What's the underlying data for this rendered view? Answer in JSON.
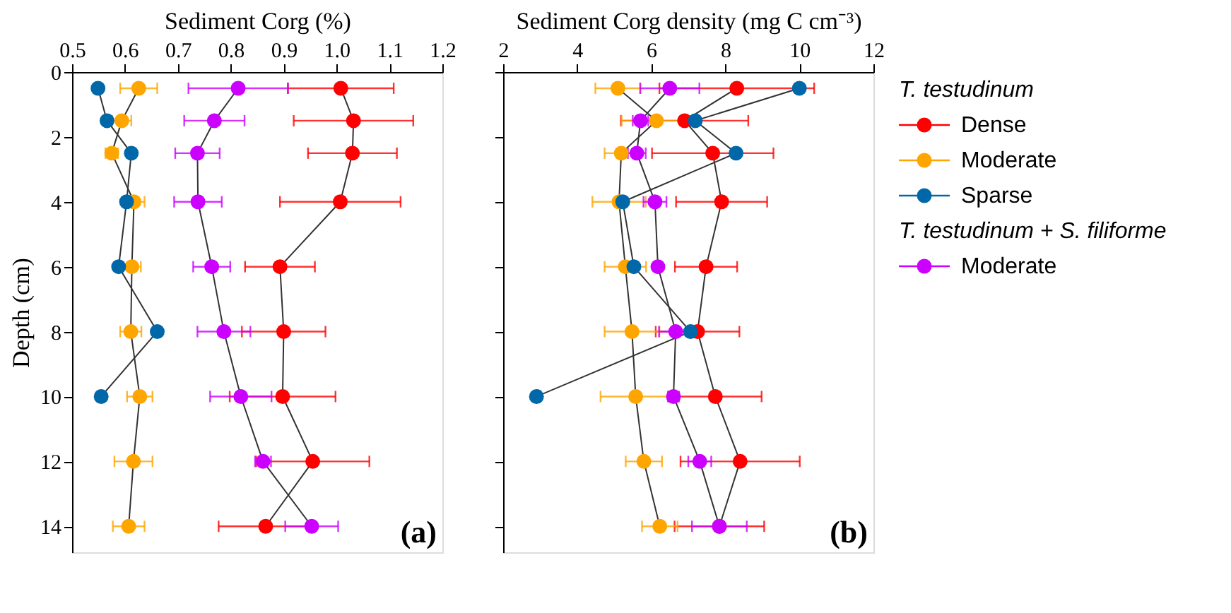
{
  "chart_data": [
    {
      "type": "line",
      "orientation": "horizontal",
      "marker": "circle",
      "xlabel": "Sediment Corg (%)",
      "ylabel": "Depth (cm)",
      "x": [
        0.5,
        1.5,
        2.5,
        4,
        6,
        8,
        10,
        12,
        14
      ],
      "xlim": [
        0.5,
        1.2
      ],
      "xticks": [
        0.5,
        0.6,
        0.7,
        0.8,
        0.9,
        {
          "value": 1,
          "label": "1.0"
        },
        1.1,
        1.2
      ],
      "ylim": [
        14.8,
        0
      ],
      "yticks": [
        0,
        2,
        4,
        6,
        8,
        10,
        12,
        14
      ],
      "grid": false,
      "annotations": [
        "(a)"
      ],
      "series": [
        {
          "color": "#ff0000",
          "values": [
            1.008,
            1.032,
            1.03,
            1.007,
            0.893,
            0.9,
            0.898,
            0.955,
            0.866
          ],
          "errors": [
            0.1,
            0.113,
            0.084,
            0.114,
            0.066,
            0.079,
            0.1,
            0.107,
            0.089
          ]
        },
        {
          "color": "#ffa500",
          "values": [
            0.626,
            0.594,
            0.575,
            0.617,
            0.613,
            0.611,
            0.628,
            0.616,
            0.607
          ],
          "errors": [
            0.035,
            0.018,
            0.012,
            0.02,
            0.017,
            0.02,
            0.024,
            0.036,
            0.03
          ]
        },
        {
          "color": "#0068a8",
          "values": [
            0.549,
            0.566,
            0.612,
            0.603,
            0.588,
            0.661,
            0.555,
            null,
            null
          ]
        },
        {
          "color": "#cc00ff",
          "values": [
            0.814,
            0.769,
            0.737,
            0.738,
            0.764,
            0.787,
            0.819,
            0.861,
            0.953
          ],
          "errors": [
            0.094,
            0.057,
            0.042,
            0.045,
            0.035,
            0.05,
            0.058,
            0.015,
            0.05
          ]
        }
      ]
    },
    {
      "type": "line",
      "orientation": "horizontal",
      "marker": "circle",
      "xlabel": "Sediment Corg density (mg C cm⁻³)",
      "x": [
        0.5,
        1.5,
        2.5,
        4,
        6,
        8,
        10,
        12,
        14
      ],
      "xlim": [
        2,
        12
      ],
      "xticks": [
        2,
        4,
        6,
        8,
        10,
        12
      ],
      "ylim": [
        14.8,
        0
      ],
      "yticks": [
        0,
        2,
        4,
        6,
        8,
        10,
        12,
        14
      ],
      "tick_labels": "x",
      "grid": false,
      "legend": "right",
      "legend_title": [
        "T. testudinum",
        "T. testudinum + S. filiforme"
      ],
      "annotations": [
        "(b)"
      ],
      "series": [
        {
          "name": "Dense",
          "color": "#ff0000",
          "values": [
            8.31,
            6.9,
            7.66,
            7.9,
            7.48,
            7.25,
            7.73,
            8.4,
            7.84
          ],
          "errors": [
            2.09,
            1.72,
            1.64,
            1.23,
            0.84,
            1.13,
            1.25,
            1.61,
            1.21
          ]
        },
        {
          "name": "Moderate",
          "color": "#ffa500",
          "values": [
            5.1,
            6.14,
            5.19,
            5.13,
            5.3,
            5.48,
            5.58,
            5.8,
            6.23
          ],
          "errors": [
            0.61,
            0.94,
            0.45,
            0.72,
            0.56,
            0.74,
            0.95,
            0.49,
            0.48
          ]
        },
        {
          "name": "Sparse",
          "color": "#0068a8",
          "values": [
            10.0,
            7.19,
            8.29,
            5.23,
            5.53,
            7.06,
            2.9,
            null,
            null
          ]
        },
        {
          "name": "Moderate",
          "color": "#cc00ff",
          "values": [
            6.5,
            5.71,
            5.61,
            6.1,
            6.18,
            6.66,
            6.6,
            7.31,
            7.84
          ],
          "errors": [
            0.8,
            0.21,
            0.24,
            0.31,
            null,
            0.45,
            0.15,
            0.31,
            0.74
          ]
        }
      ]
    }
  ]
}
